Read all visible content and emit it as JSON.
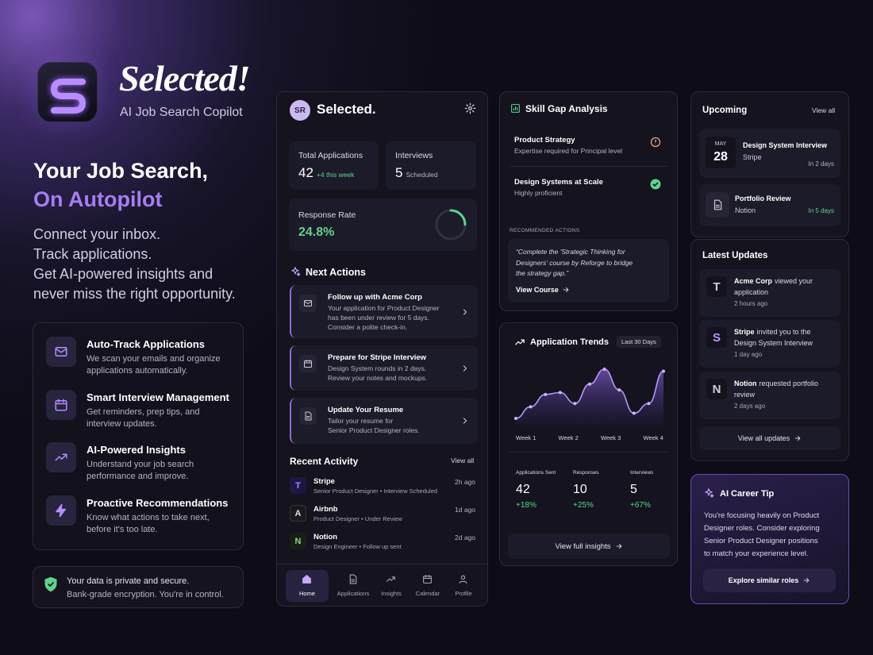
{
  "brand": {
    "name": "Selected!",
    "tagline": "AI Job Search Copilot"
  },
  "hero": {
    "title_line1": "Your Job Search,",
    "title_line2": "On Autopilot",
    "description": [
      "Connect your inbox.",
      "Track applications.",
      "Get AI-powered insights and",
      "never miss the right opportunity."
    ]
  },
  "features": [
    {
      "title": "Auto-Track Applications",
      "text": [
        "We scan your emails and organize",
        "applications automatically."
      ]
    },
    {
      "title": "Smart Interview Management",
      "text": [
        "Get reminders, prep tips, and",
        "interview updates."
      ]
    },
    {
      "title": "AI-Powered Insights",
      "text": [
        "Understand your job search",
        "performance and improve."
      ]
    },
    {
      "title": "Proactive Recommendations",
      "text": [
        "Know what actions to take next,",
        "before it's too late."
      ]
    }
  ],
  "privacy": {
    "title": "Your data is private and secure.",
    "text": "Bank-grade encryption. You're in control."
  },
  "app": {
    "initials": "SR",
    "name": "Selected.",
    "stats": [
      {
        "label": "Total Applications",
        "value": 42,
        "note": "+4 this week"
      },
      {
        "label": "Interviews",
        "value": 5,
        "note": "Scheduled"
      }
    ],
    "response_rate": {
      "label": "Response Rate",
      "value": {
        "value": 24.8,
        "label": "24.8%"
      }
    },
    "next_actions": {
      "title": "Next Actions",
      "items": [
        {
          "title": "Follow up with Acme Corp",
          "text": [
            "Your application for Product Designer",
            "has been under review for 5 days.",
            "Consider a polite check-in."
          ]
        },
        {
          "title": "Prepare for Stripe Interview",
          "text": [
            "Design System rounds in 2 days.",
            "Review your notes and mockups."
          ]
        },
        {
          "title": "Update Your Resume",
          "text": [
            "Tailor your resume for",
            "Senior Product Designer roles."
          ]
        }
      ]
    },
    "recent_activity": {
      "title": "Recent Activity",
      "link": "View all",
      "items": [
        {
          "icon": "T",
          "company": "Stripe",
          "detail": "Senior Product Designer • Interview Scheduled",
          "time": "2h ago"
        },
        {
          "icon": "A",
          "company": "Airbnb",
          "detail": "Product Designer • Under Review",
          "time": "1d ago"
        },
        {
          "icon": "N",
          "company": "Notion",
          "detail": "Design Engineer • Follow up sent",
          "time": "2d ago"
        }
      ]
    },
    "nav": [
      "Home",
      "Applications",
      "Insights",
      "Calendar",
      "Profile"
    ]
  },
  "skill_gap": {
    "title": "Skill Gap Analysis",
    "items": [
      {
        "title": "Product Strategy",
        "text": "Expertise required for Principal level"
      },
      {
        "title": "Design Systems at Scale",
        "text": "Highly proficient"
      }
    ],
    "recommended": {
      "label": "RECOMMENDED ACTIONS",
      "quote": [
        "“Complete the 'Strategic Thinking for",
        "Designers' course by Reforge to bridge",
        "the strategy gap.”"
      ],
      "link": "View Course"
    }
  },
  "trends": {
    "title": "Application Trends",
    "range": "Last 30 Days",
    "curve": [
      13,
      31,
      50,
      53,
      36,
      66,
      89,
      57,
      21,
      36,
      86
    ],
    "axis_labels": [
      "Week 1",
      "Week 2",
      "Week 3",
      "Week 4"
    ],
    "stats": [
      {
        "label": "Applications Sent",
        "value": 42,
        "change": "+18%"
      },
      {
        "label": "Responses",
        "value": 10,
        "change": "+25%"
      },
      {
        "label": "Interviews",
        "value": 5,
        "change": "+67%"
      }
    ],
    "link": "View full insights"
  },
  "upcoming": {
    "title": "Upcoming",
    "link": "View all",
    "items": [
      {
        "month": "MAY",
        "day": 28,
        "title": "Design System Interview",
        "company": "Stripe",
        "when": "In 2 days"
      },
      {
        "title": "Portfolio Review",
        "company": "Notion",
        "when": "In 5 days"
      }
    ]
  },
  "updates": {
    "title": "Latest Updates",
    "items": [
      {
        "icon": "T",
        "company": "Acme Corp",
        "text": [
          "viewed your",
          "application"
        ],
        "time": "2 hours ago"
      },
      {
        "icon": "S",
        "company": "Stripe",
        "text": [
          "invited you to the",
          "Design System Interview"
        ],
        "time": "1 day ago"
      },
      {
        "icon": "N",
        "company": "Notion",
        "text": [
          "requested portfolio",
          "review"
        ],
        "time": "2 days ago"
      }
    ],
    "link": "View all updates"
  },
  "tip": {
    "title": "AI Career Tip",
    "text": [
      "You're focusing heavily on Product",
      "Designer roles. Consider exploring",
      "Senior Product Designer positions",
      "to match your experience level."
    ],
    "button": "Explore similar roles"
  }
}
